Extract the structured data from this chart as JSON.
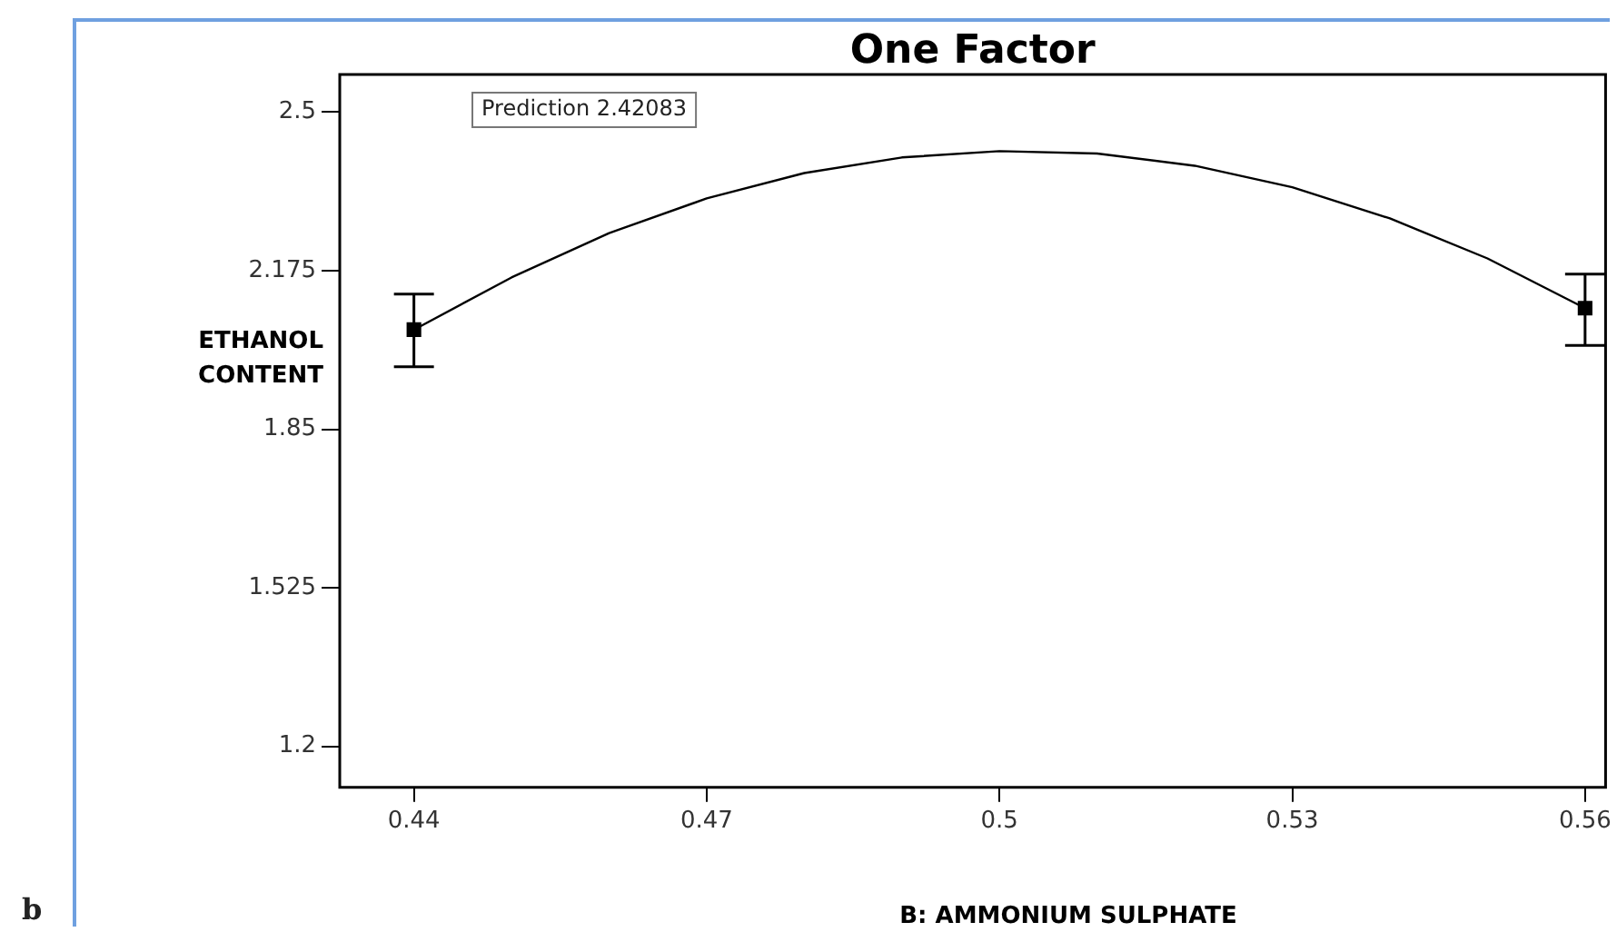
{
  "chart_data": {
    "type": "line",
    "title": "One Factor",
    "xlabel": "B: AMMONIUM SULPHATE",
    "ylabel": "ETHANOL CONTENT",
    "xlim": [
      0.4324,
      0.5621
    ],
    "xticks": [
      0.44,
      0.47,
      0.5,
      0.53,
      0.56
    ],
    "ylim": [
      1.116,
      2.577
    ],
    "yticks": [
      1.2,
      1.525,
      1.85,
      2.175,
      2.5
    ],
    "grid": false,
    "legend": false,
    "series": [
      {
        "color": "#000000",
        "marker": "none",
        "x": [
          0.44,
          0.45,
          0.46,
          0.47,
          0.48,
          0.49,
          0.5,
          0.51,
          0.52,
          0.53,
          0.54,
          0.55,
          0.56
        ],
        "values": [
          2.054,
          2.161,
          2.252,
          2.323,
          2.375,
          2.407,
          2.42,
          2.415,
          2.39,
          2.346,
          2.282,
          2.2,
          2.098
        ]
      },
      {
        "type": "scatter",
        "color": "#000000",
        "marker": "square",
        "x": [
          0.44,
          0.56
        ],
        "values": [
          2.054,
          2.098
        ],
        "errors": [
          [
            1.978,
            2.127
          ],
          [
            2.022,
            2.168
          ]
        ]
      }
    ],
    "annotations": [
      "Prediction 2.42083",
      "b"
    ]
  }
}
